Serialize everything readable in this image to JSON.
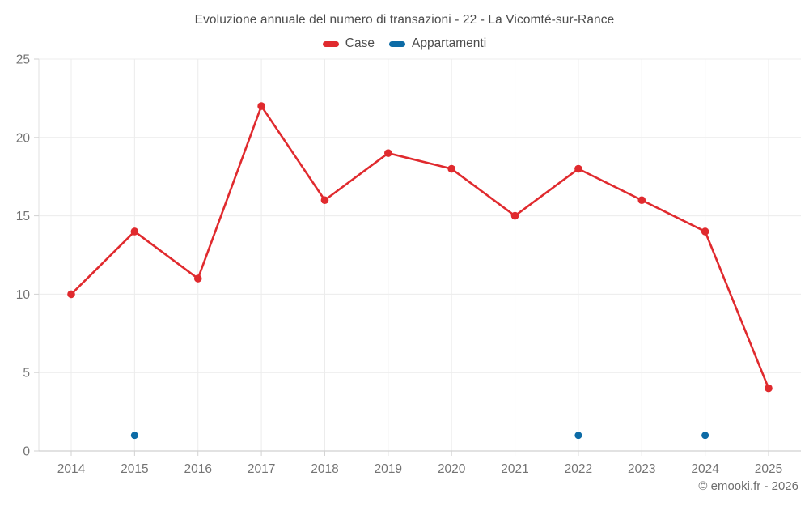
{
  "chart": {
    "title": "Evoluzione annuale del numero di transazioni - 22 - La Vicomté-sur-Rance"
  },
  "chart_data": {
    "type": "line",
    "title": "Evoluzione annuale del numero di transazioni - 22 - La Vicomté-sur-Rance",
    "categories": [
      "2014",
      "2015",
      "2016",
      "2017",
      "2018",
      "2019",
      "2020",
      "2021",
      "2022",
      "2023",
      "2024",
      "2025"
    ],
    "series": [
      {
        "name": "Case",
        "type": "line",
        "color": "#e02a2e",
        "values": [
          10,
          14,
          11,
          22,
          16,
          19,
          18,
          15,
          18,
          16,
          14,
          4
        ]
      },
      {
        "name": "Appartamenti",
        "type": "scatter",
        "color": "#0c6ba6",
        "values": [
          null,
          1,
          null,
          null,
          null,
          null,
          null,
          null,
          1,
          null,
          1,
          null
        ]
      }
    ],
    "ylim": [
      0,
      25
    ],
    "yticks": [
      0,
      5,
      10,
      15,
      20,
      25
    ],
    "grid": true,
    "legend_position": "top",
    "grid_color": "#ececec",
    "axis_border_color": "#c6c6c6",
    "tick_color": "#d2d2d2"
  },
  "footer": {
    "copyright": "© emooki.fr - 2026"
  }
}
